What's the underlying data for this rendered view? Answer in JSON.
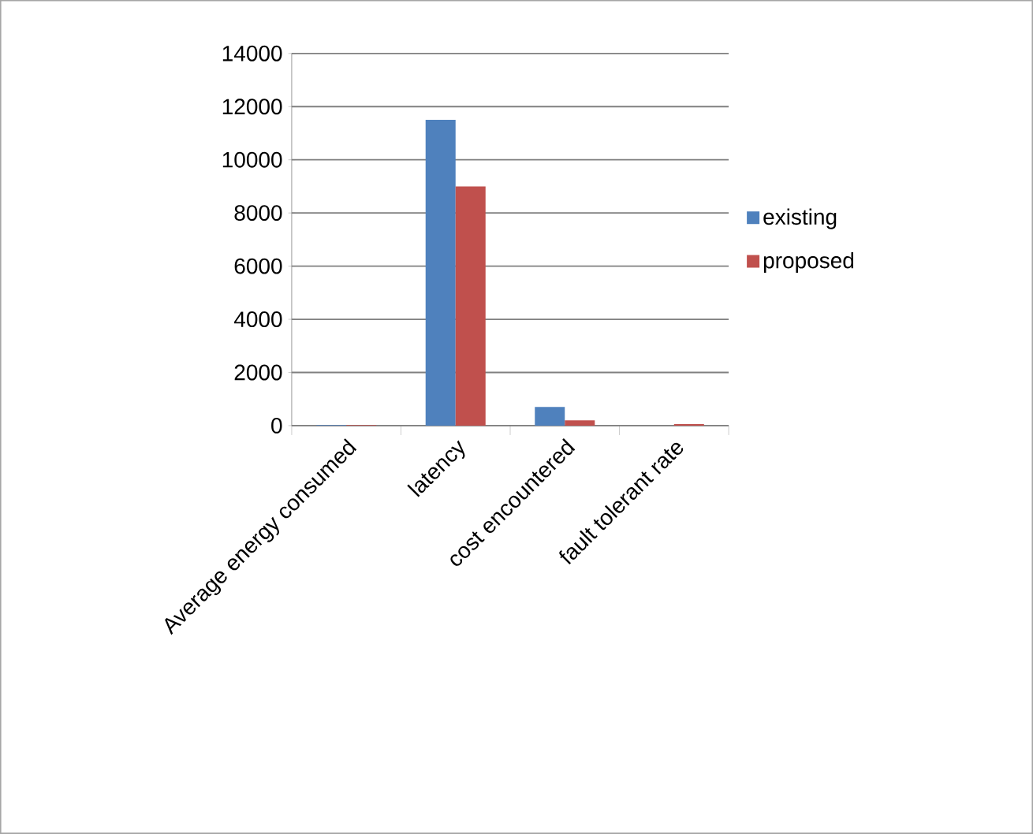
{
  "chart_data": {
    "type": "bar",
    "categories": [
      "Average energy consumed",
      "latency",
      "cost encountered",
      "fault tolerant rate"
    ],
    "series": [
      {
        "name": "existing",
        "color": "#4f81bd",
        "values": [
          20,
          11500,
          700,
          null
        ]
      },
      {
        "name": "proposed",
        "color": "#c0504d",
        "values": [
          20,
          9000,
          200,
          60
        ]
      }
    ],
    "ylim": [
      0,
      14000
    ],
    "yticks": [
      0,
      2000,
      4000,
      6000,
      8000,
      10000,
      12000,
      14000
    ],
    "grid": "y",
    "legend": "right"
  }
}
